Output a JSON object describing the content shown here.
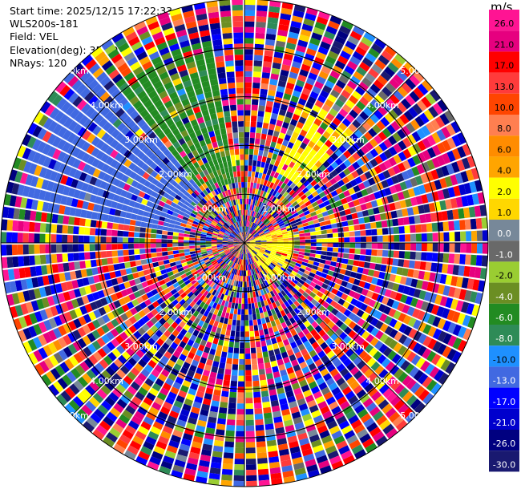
{
  "info": {
    "start_time": "Start time: 2025/12/15 17:22:33",
    "device": "WLS200s-181",
    "field": "Field: VEL",
    "elevation": "Elevation(deg): 35.00",
    "nrays": "NRays: 120"
  },
  "colorbar": {
    "unit": "m/s",
    "bins": [
      {
        "label": "26.0",
        "color": "#ff1493"
      },
      {
        "label": "21.0",
        "color": "#e6007f"
      },
      {
        "label": "17.0",
        "color": "#ff0000"
      },
      {
        "label": "13.0",
        "color": "#ff3b3b"
      },
      {
        "label": "10.0",
        "color": "#ff4500"
      },
      {
        "label": "8.0",
        "color": "#ff7f50"
      },
      {
        "label": "6.0",
        "color": "#ff8c00"
      },
      {
        "label": "4.0",
        "color": "#ffa500"
      },
      {
        "label": "2.0",
        "color": "#ffff00"
      },
      {
        "label": "1.0",
        "color": "#ffd700"
      },
      {
        "label": "0.0",
        "color": "#778899"
      },
      {
        "label": "-1.0",
        "color": "#696969"
      },
      {
        "label": "-2.0",
        "color": "#9acd32"
      },
      {
        "label": "-4.0",
        "color": "#6b8e23"
      },
      {
        "label": "-6.0",
        "color": "#228b22"
      },
      {
        "label": "-8.0",
        "color": "#2e8b57"
      },
      {
        "label": "-10.0",
        "color": "#1e90ff"
      },
      {
        "label": "-13.0",
        "color": "#4169e1"
      },
      {
        "label": "-17.0",
        "color": "#0000ff"
      },
      {
        "label": "-21.0",
        "color": "#0000cd"
      },
      {
        "label": "-26.0",
        "color": "#000080"
      },
      {
        "label": "-30.0",
        "color": "#191970"
      }
    ]
  },
  "chart_data": {
    "type": "heatmap",
    "projection": "polar (PPI)",
    "field": "VEL",
    "unit": "m/s",
    "n_rays": 120,
    "max_range_km": 5.0,
    "range_rings_km": [
      1.0,
      2.0,
      3.0,
      4.0,
      5.0
    ],
    "range_ring_labels": [
      "1.00km",
      "2.00km",
      "3.00km",
      "4.00km",
      "5.00km"
    ],
    "grid": true,
    "colorbar_ticks": [
      26.0,
      21.0,
      17.0,
      13.0,
      10.0,
      8.0,
      6.0,
      4.0,
      2.0,
      1.0,
      0.0,
      -1.0,
      -2.0,
      -4.0,
      -6.0,
      -8.0,
      -10.0,
      -13.0,
      -17.0,
      -21.0,
      -26.0,
      -30.0
    ],
    "coherent_regions": [
      {
        "azimuth_deg": [
          280,
          322
        ],
        "range_km": [
          1.3,
          4.8
        ],
        "velocity_ms": -11.5,
        "description": "blue (approaching) sector, upper-left"
      },
      {
        "azimuth_deg": [
          322,
          352
        ],
        "range_km": [
          1.3,
          4.2
        ],
        "velocity_ms": -5.0,
        "description": "green sector, upper-left"
      },
      {
        "azimuth_deg": [
          25,
          45
        ],
        "range_km": [
          1.6,
          3.2
        ],
        "velocity_ms": 3.0,
        "description": "yellow (receding) patch, upper-right"
      },
      {
        "azimuth_deg": [
          70,
          150
        ],
        "range_km": [
          0.0,
          1.0
        ],
        "velocity_ms": 3.0,
        "description": "yellow/orange near center"
      }
    ]
  }
}
